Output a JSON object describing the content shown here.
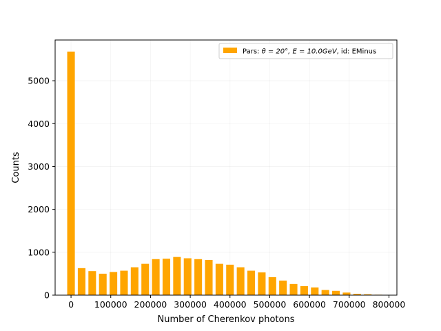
{
  "chart_data": {
    "type": "bar",
    "xlabel": "Number of Cherenkov photons",
    "ylabel": "Counts",
    "xlim": [
      -40000,
      820000
    ],
    "ylim": [
      0,
      5950
    ],
    "xticks": [
      0,
      100000,
      200000,
      300000,
      400000,
      500000,
      600000,
      700000,
      800000
    ],
    "xtick_labels": [
      "0",
      "100000",
      "200000",
      "300000",
      "400000",
      "500000",
      "600000",
      "700000",
      "800000"
    ],
    "yticks": [
      0,
      1000,
      2000,
      3000,
      4000,
      5000
    ],
    "ytick_labels": [
      "0",
      "1000",
      "2000",
      "3000",
      "4000",
      "5000"
    ],
    "grid": true,
    "legend_position": "top-right",
    "bar_color": "#ffa500",
    "series": [
      {
        "name_prefix": "Pars: ",
        "name_math": "θ = 20°, E = 10.0GeV",
        "name_suffix": ", id: EMinus",
        "x": [
          0,
          26667,
          53333,
          80000,
          106667,
          133333,
          160000,
          186667,
          213333,
          240000,
          266667,
          293333,
          320000,
          346667,
          373333,
          400000,
          426667,
          453333,
          480000,
          506667,
          533333,
          560000,
          586667,
          613333,
          640000,
          666667,
          693333,
          720000,
          746667,
          773333
        ],
        "values": [
          5680,
          630,
          560,
          500,
          540,
          570,
          650,
          730,
          840,
          850,
          890,
          860,
          840,
          820,
          730,
          710,
          650,
          570,
          530,
          420,
          340,
          260,
          210,
          180,
          120,
          100,
          60,
          30,
          20,
          10
        ]
      }
    ]
  }
}
